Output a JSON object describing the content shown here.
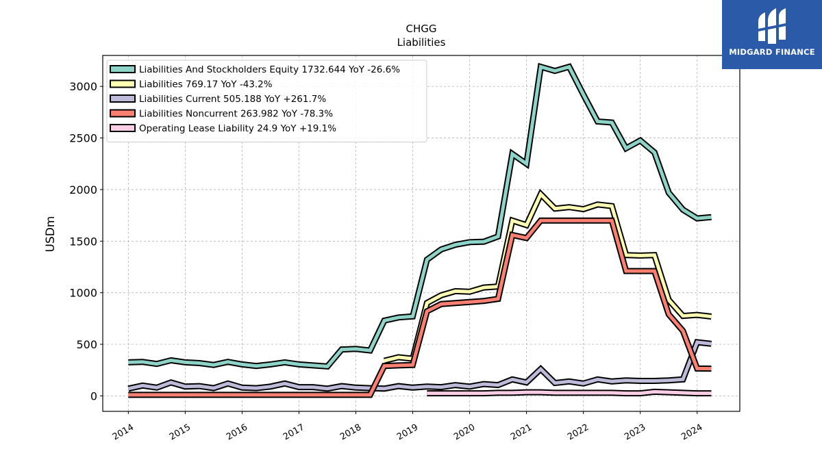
{
  "brand": {
    "name": "MIDGARD FINANCE",
    "background": "#2b5aa8"
  },
  "chart_data": {
    "type": "line",
    "title": "CHGG",
    "subtitle": "Liabilities",
    "ylabel": "USDm",
    "xlabel": "",
    "x_ticks": [
      "2014",
      "2015",
      "2016",
      "2017",
      "2018",
      "2019",
      "2020",
      "2021",
      "2022",
      "2023",
      "2024"
    ],
    "ylim": [
      -150,
      3300
    ],
    "y_ticks": [
      0,
      500,
      1000,
      1500,
      2000,
      2500,
      3000
    ],
    "grid": true,
    "legend_position": "top-left",
    "x": [
      "2014-01",
      "2014-04",
      "2014-07",
      "2014-10",
      "2015-01",
      "2015-04",
      "2015-07",
      "2015-10",
      "2016-01",
      "2016-04",
      "2016-07",
      "2016-10",
      "2017-01",
      "2017-04",
      "2017-07",
      "2017-10",
      "2018-01",
      "2018-04",
      "2018-07",
      "2018-10",
      "2019-01",
      "2019-04",
      "2019-07",
      "2019-10",
      "2020-01",
      "2020-04",
      "2020-07",
      "2020-10",
      "2021-01",
      "2021-04",
      "2021-07",
      "2021-10",
      "2022-01",
      "2022-04",
      "2022-07",
      "2022-10",
      "2023-01",
      "2023-04",
      "2023-07",
      "2023-10",
      "2024-01",
      "2024-04"
    ],
    "series": [
      {
        "name": "Liabilities And Stockholders Equity",
        "legend": "Liabilities And Stockholders Equity  1732.644 YoY -26.6%",
        "color": "#8dd3c7",
        "values": [
          325,
          330,
          310,
          345,
          325,
          318,
          300,
          330,
          305,
          290,
          305,
          325,
          305,
          295,
          285,
          450,
          455,
          440,
          730,
          760,
          770,
          1320,
          1420,
          1465,
          1490,
          1495,
          1545,
          2345,
          2250,
          3190,
          3150,
          3190,
          2920,
          2660,
          2650,
          2400,
          2475,
          2360,
          1970,
          1805,
          1720,
          1733
        ]
      },
      {
        "name": "Liabilities",
        "legend": "Liabilities  769.17 YoY -43.2%",
        "color": "#ffffb3",
        "values": [
          null,
          null,
          null,
          null,
          null,
          null,
          null,
          null,
          null,
          null,
          null,
          null,
          null,
          null,
          null,
          null,
          null,
          null,
          340,
          375,
          360,
          900,
          975,
          1015,
          1010,
          1050,
          1060,
          1700,
          1655,
          1955,
          1815,
          1830,
          1810,
          1855,
          1840,
          1365,
          1360,
          1365,
          930,
          775,
          785,
          769
        ]
      },
      {
        "name": "Liabilities Current",
        "legend": "Liabilities Current  505.188 YoY +261.7%",
        "color": "#bebada",
        "values": [
          70,
          100,
          80,
          130,
          90,
          95,
          75,
          120,
          80,
          75,
          90,
          120,
          85,
          85,
          70,
          95,
          80,
          75,
          70,
          95,
          80,
          90,
          85,
          105,
          90,
          115,
          105,
          160,
          130,
          260,
          125,
          140,
          120,
          160,
          140,
          150,
          145,
          145,
          150,
          160,
          520,
          505
        ]
      },
      {
        "name": "Liabilities Noncurrent",
        "legend": "Liabilities Noncurrent  263.982 YoY -78.3%",
        "color": "#fb8072",
        "values": [
          10,
          10,
          10,
          10,
          10,
          10,
          10,
          10,
          10,
          10,
          10,
          10,
          10,
          10,
          10,
          10,
          10,
          10,
          290,
          295,
          300,
          820,
          890,
          900,
          910,
          920,
          940,
          1560,
          1530,
          1700,
          1700,
          1700,
          1700,
          1700,
          1700,
          1210,
          1210,
          1210,
          790,
          630,
          265,
          264
        ]
      },
      {
        "name": "Operating Lease Liability",
        "legend": "Operating Lease Liability  24.9 YoY +19.1%",
        "color": "#fccde5",
        "values": [
          null,
          null,
          null,
          null,
          null,
          null,
          null,
          null,
          null,
          null,
          null,
          null,
          null,
          null,
          null,
          null,
          null,
          null,
          null,
          null,
          null,
          25,
          25,
          25,
          25,
          25,
          30,
          30,
          35,
          35,
          30,
          30,
          30,
          30,
          30,
          25,
          25,
          40,
          35,
          30,
          25,
          25
        ]
      }
    ]
  }
}
